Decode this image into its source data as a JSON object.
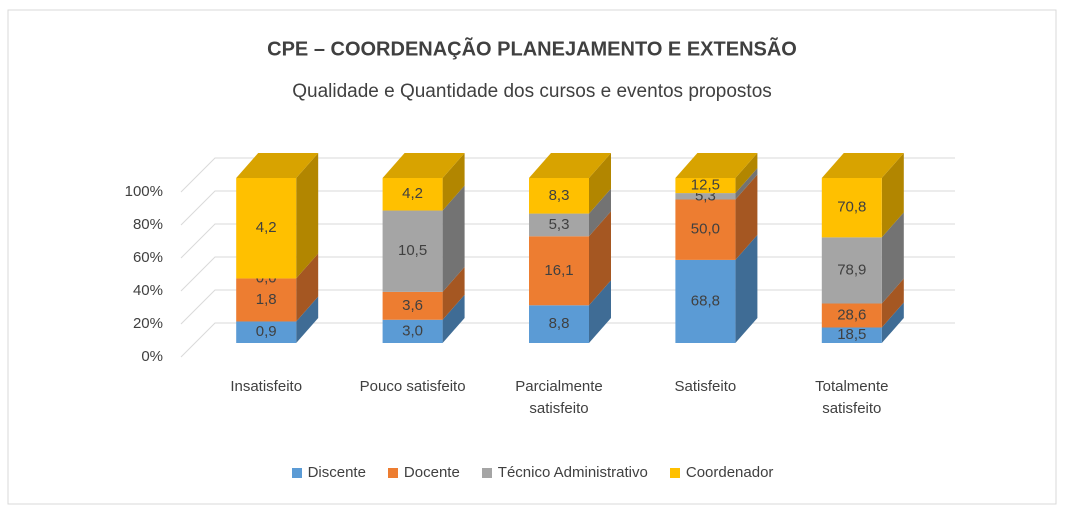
{
  "chart_data": {
    "type": "bar3d_stacked100",
    "title": "CPE – COORDENAÇÃO PLANEJAMENTO E EXTENSÃO",
    "subtitle": "Qualidade e Quantidade dos cursos e eventos propostos",
    "categories": [
      "Insatisfeito",
      "Pouco satisfeito",
      "Parcialmente satisfeito",
      "Satisfeito",
      "Totalmente satisfeito"
    ],
    "series": [
      {
        "name": "Discente",
        "color": "#5b9bd5",
        "values": [
          0.9,
          3.0,
          8.8,
          68.8,
          18.5
        ],
        "value_labels": [
          "0,9",
          "3,0",
          "8,8",
          "68,8",
          "18,5"
        ]
      },
      {
        "name": "Docente",
        "color": "#ed7d31",
        "values": [
          1.8,
          3.6,
          16.1,
          50.0,
          28.6
        ],
        "value_labels": [
          "1,8",
          "3,6",
          "16,1",
          "50,0",
          "28,6"
        ]
      },
      {
        "name": "Técnico Administrativo",
        "color": "#a5a5a5",
        "values": [
          0.0,
          10.5,
          5.3,
          5.3,
          78.9
        ],
        "value_labels": [
          "0,0",
          "10,5",
          "5,3",
          "5,3",
          "78,9"
        ]
      },
      {
        "name": "Coordenador",
        "color": "#ffc000",
        "values": [
          4.2,
          4.2,
          8.3,
          12.5,
          70.8
        ],
        "value_labels": [
          "4,2",
          "4,2",
          "8,3",
          "12,5",
          "70,8"
        ]
      }
    ],
    "ylim": [
      0,
      100
    ],
    "yticks": [
      {
        "value": 0,
        "label": "0%"
      },
      {
        "value": 20,
        "label": "20%"
      },
      {
        "value": 40,
        "label": "40%"
      },
      {
        "value": 60,
        "label": "60%"
      },
      {
        "value": 80,
        "label": "80%"
      },
      {
        "value": 100,
        "label": "100%"
      }
    ],
    "grid": true,
    "legend": "bottom"
  }
}
